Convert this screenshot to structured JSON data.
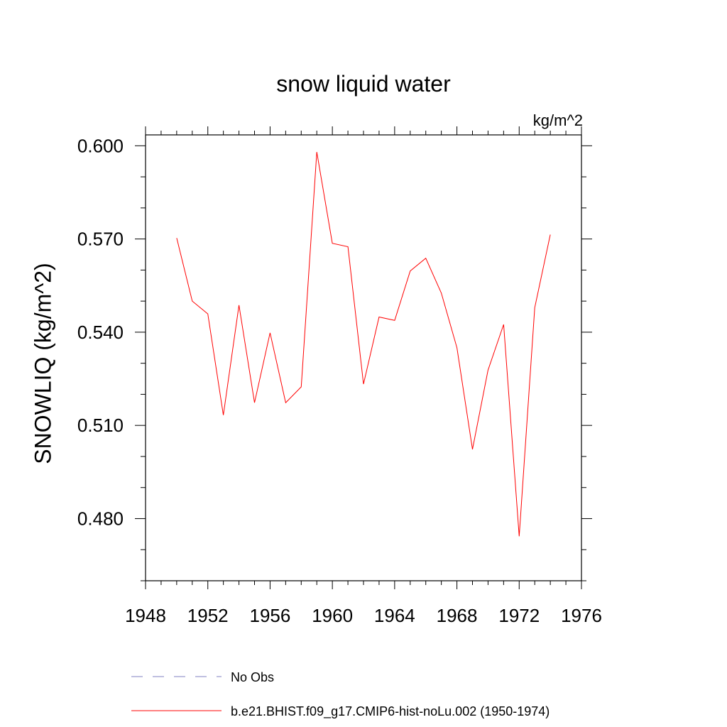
{
  "chart_data": {
    "type": "line",
    "title": "snow liquid water",
    "units_label": "kg/m^2",
    "ylabel": "SNOWLIQ  (kg/m^2)",
    "xlabel": "",
    "xlim": [
      1948,
      1976
    ],
    "ylim": [
      0.46,
      0.6035
    ],
    "xticks": [
      "1948",
      "1952",
      "1956",
      "1960",
      "1964",
      "1968",
      "1972",
      "1976"
    ],
    "yticks": [
      "0.480",
      "0.510",
      "0.540",
      "0.570",
      "0.600"
    ],
    "grid": false,
    "legend_position": "bottom",
    "legend": [
      {
        "label": "No Obs",
        "color": "#8080c0",
        "style": "dashed"
      },
      {
        "label": "b.e21.BHIST.f09_g17.CMIP6-hist-noLu.002 (1950-1974)",
        "color": "#ff0000",
        "style": "solid"
      }
    ],
    "series": [
      {
        "name": "b.e21.BHIST.f09_g17.CMIP6-hist-noLu.002 (1950-1974)",
        "color": "#ff0000",
        "x": [
          1950,
          1951,
          1952,
          1953,
          1954,
          1955,
          1956,
          1957,
          1958,
          1959,
          1960,
          1961,
          1962,
          1963,
          1964,
          1965,
          1966,
          1967,
          1968,
          1969,
          1970,
          1971,
          1972,
          1973,
          1974
        ],
        "values": [
          0.5703,
          0.55,
          0.5459,
          0.5133,
          0.5487,
          0.5173,
          0.5398,
          0.5173,
          0.5224,
          0.598,
          0.5686,
          0.5675,
          0.5233,
          0.5449,
          0.5438,
          0.5597,
          0.5638,
          0.5526,
          0.535,
          0.5023,
          0.5278,
          0.5425,
          0.4743,
          0.5479,
          0.5714
        ]
      }
    ]
  }
}
